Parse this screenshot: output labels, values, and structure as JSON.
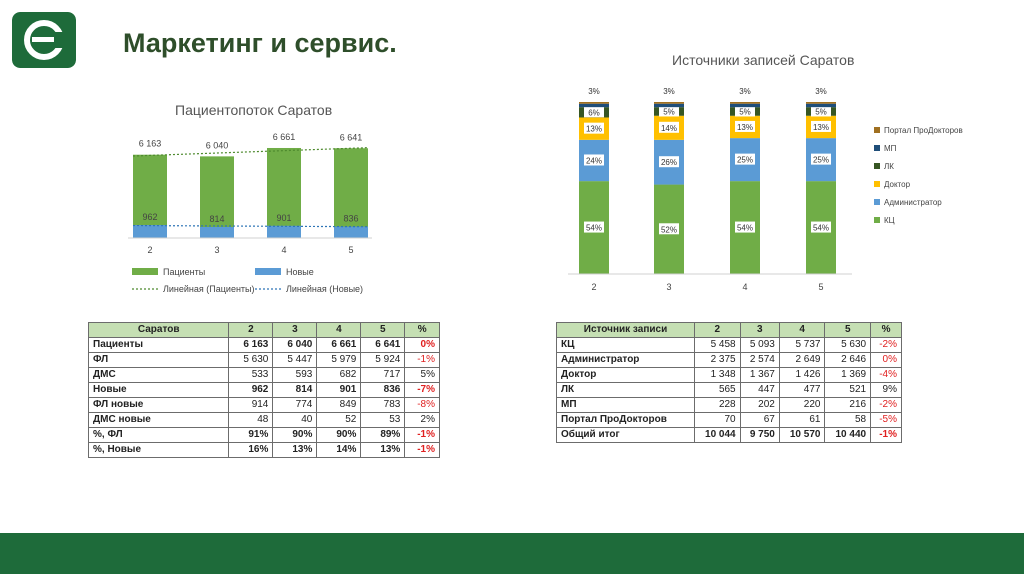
{
  "slide": {
    "title": "Маркетинг и сервис.",
    "brand_color": "#1e6b3a"
  },
  "chart_data": [
    {
      "type": "bar",
      "title": "Пациентопоток Саратов",
      "categories": [
        "2",
        "3",
        "4",
        "5"
      ],
      "series": [
        {
          "name": "Пациенты",
          "values": [
            6163,
            6040,
            6661,
            6641
          ],
          "labels": [
            "6 163",
            "6 040",
            "6 661",
            "6 641"
          ],
          "color": "#70ad47"
        },
        {
          "name": "Новые",
          "values": [
            962,
            814,
            901,
            836
          ],
          "labels": [
            "962",
            "814",
            "901",
            "836"
          ],
          "color": "#5b9bd5"
        }
      ],
      "trendlines": [
        "Линейная (Пациенты)",
        "Линейная (Новые)"
      ]
    },
    {
      "type": "bar",
      "stacked": true,
      "title": "Источники записей Саратов",
      "categories": [
        "2",
        "3",
        "4",
        "5"
      ],
      "series": [
        {
          "name": "КЦ",
          "values": [
            54,
            52,
            54,
            54
          ],
          "color": "#70ad47"
        },
        {
          "name": "Администратор",
          "values": [
            24,
            26,
            25,
            25
          ],
          "color": "#5b9bd5"
        },
        {
          "name": "Доктор",
          "values": [
            13,
            14,
            13,
            13
          ],
          "color": "#ffc000"
        },
        {
          "name": "ЛК",
          "values": [
            6,
            5,
            5,
            5
          ],
          "color": "#375623"
        },
        {
          "name": "МП",
          "values": [
            2,
            2,
            2,
            2
          ],
          "color": "#1f4e79"
        },
        {
          "name": "Портал ПроДокторов",
          "values": [
            1,
            1,
            1,
            1
          ],
          "color": "#a07020"
        }
      ],
      "top_labels": [
        "3%",
        "3%",
        "3%",
        "3%"
      ]
    }
  ],
  "table1": {
    "headers": [
      "Саратов",
      "2",
      "3",
      "4",
      "5",
      "%"
    ],
    "rows": [
      {
        "label": "Пациенты",
        "vals": [
          "6 163",
          "6 040",
          "6 661",
          "6 641"
        ],
        "pct": "0%",
        "bold": true
      },
      {
        "label": "ФЛ",
        "vals": [
          "5 630",
          "5 447",
          "5 979",
          "5 924"
        ],
        "pct": "-1%",
        "bold": false
      },
      {
        "label": "ДМС",
        "vals": [
          "533",
          "593",
          "682",
          "717"
        ],
        "pct": "5%",
        "bold": false
      },
      {
        "label": "Новые",
        "vals": [
          "962",
          "814",
          "901",
          "836"
        ],
        "pct": "-7%",
        "bold": true
      },
      {
        "label": "ФЛ новые",
        "vals": [
          "914",
          "774",
          "849",
          "783"
        ],
        "pct": "-8%",
        "bold": false
      },
      {
        "label": "ДМС новые",
        "vals": [
          "48",
          "40",
          "52",
          "53"
        ],
        "pct": "2%",
        "bold": false
      },
      {
        "label": "%, ФЛ",
        "vals": [
          "91%",
          "90%",
          "90%",
          "89%"
        ],
        "pct": "-1%",
        "bold": true
      },
      {
        "label": "%, Новые",
        "vals": [
          "16%",
          "13%",
          "14%",
          "13%"
        ],
        "pct": "-1%",
        "bold": true
      }
    ]
  },
  "table2": {
    "headers": [
      "Источник записи",
      "2",
      "3",
      "4",
      "5",
      "%"
    ],
    "rows": [
      {
        "label": "КЦ",
        "vals": [
          "5 458",
          "5 093",
          "5 737",
          "5 630"
        ],
        "pct": "-2%",
        "bold": false
      },
      {
        "label": "Администратор",
        "vals": [
          "2 375",
          "2 574",
          "2 649",
          "2 646"
        ],
        "pct": "0%",
        "bold": false
      },
      {
        "label": "Доктор",
        "vals": [
          "1 348",
          "1 367",
          "1 426",
          "1 369"
        ],
        "pct": "-4%",
        "bold": false
      },
      {
        "label": "ЛК",
        "vals": [
          "565",
          "447",
          "477",
          "521"
        ],
        "pct": "9%",
        "bold": false
      },
      {
        "label": "МП",
        "vals": [
          "228",
          "202",
          "220",
          "216"
        ],
        "pct": "-2%",
        "bold": false
      },
      {
        "label": "Портал ПроДокторов",
        "vals": [
          "70",
          "67",
          "61",
          "58"
        ],
        "pct": "-5%",
        "bold": false
      },
      {
        "label": "Общий итог",
        "vals": [
          "10 044",
          "9 750",
          "10 570",
          "10 440"
        ],
        "pct": "-1%",
        "bold": true
      }
    ]
  }
}
